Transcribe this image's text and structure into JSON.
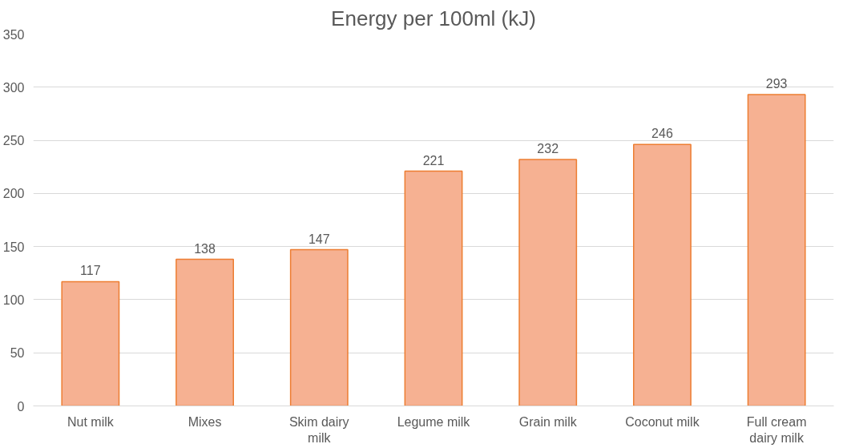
{
  "chart_data": {
    "type": "bar",
    "title": "Energy per 100ml (kJ)",
    "categories": [
      "Nut milk",
      "Mixes",
      "Skim dairy milk",
      "Legume milk",
      "Grain milk",
      "Coconut milk",
      "Full cream dairy milk"
    ],
    "values": [
      117,
      138,
      147,
      221,
      232,
      246,
      293
    ],
    "color": "#f6b192",
    "ylim": [
      0,
      350
    ],
    "yticks": [
      0,
      50,
      100,
      150,
      200,
      250,
      300,
      350
    ],
    "grid": "y",
    "data_labels": true
  }
}
